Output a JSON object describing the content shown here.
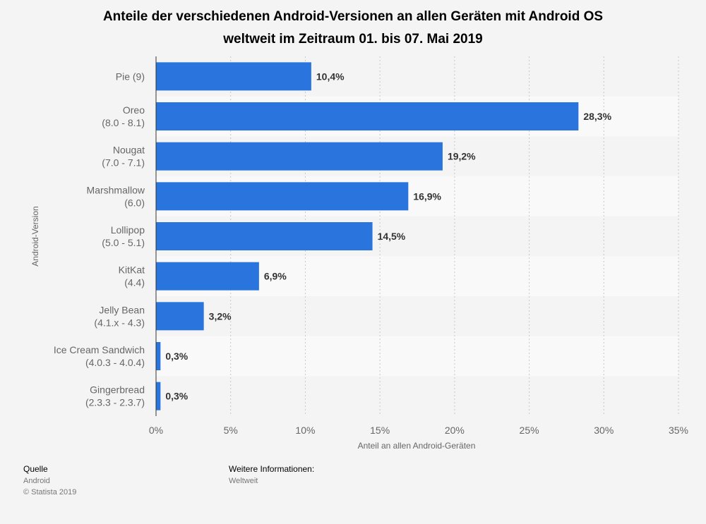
{
  "chart_data": {
    "type": "bar",
    "orientation": "horizontal",
    "title_lines": [
      "Anteile der verschiedenen Android-Versionen an allen Geräten mit Android OS",
      "weltweit im Zeitraum 01. bis 07. Mai 2019"
    ],
    "categories": [
      [
        "Pie (9)"
      ],
      [
        "Oreo",
        "(8.0 - 8.1)"
      ],
      [
        "Nougat",
        "(7.0 - 7.1)"
      ],
      [
        "Marshmallow",
        "(6.0)"
      ],
      [
        "Lollipop",
        "(5.0 - 5.1)"
      ],
      [
        "KitKat",
        "(4.4)"
      ],
      [
        "Jelly Bean",
        "(4.1.x - 4.3)"
      ],
      [
        "Ice Cream Sandwich",
        "(4.0.3 - 4.0.4)"
      ],
      [
        "Gingerbread",
        "(2.3.3 - 2.3.7)"
      ]
    ],
    "values": [
      10.4,
      28.3,
      19.2,
      16.9,
      14.5,
      6.9,
      3.2,
      0.3,
      0.3
    ],
    "value_labels": [
      "10,4%",
      "28,3%",
      "19,2%",
      "16,9%",
      "14,5%",
      "6,9%",
      "3,2%",
      "0,3%",
      "0,3%"
    ],
    "xlim": [
      0,
      35
    ],
    "xticks": [
      0,
      5,
      10,
      15,
      20,
      25,
      30,
      35
    ],
    "xtick_labels": [
      "0%",
      "5%",
      "10%",
      "15%",
      "20%",
      "25%",
      "30%",
      "35%"
    ],
    "xlabel": "Anteil an allen Android-Geräten",
    "ylabel": "Android-Version",
    "grid": true,
    "bar_color": "#2a75dd"
  },
  "footer": {
    "source_heading": "Quelle",
    "source_name": "Android",
    "copyright": "© Statista 2019",
    "info_heading": "Weitere Informationen:",
    "info_value": "Weltweit"
  }
}
